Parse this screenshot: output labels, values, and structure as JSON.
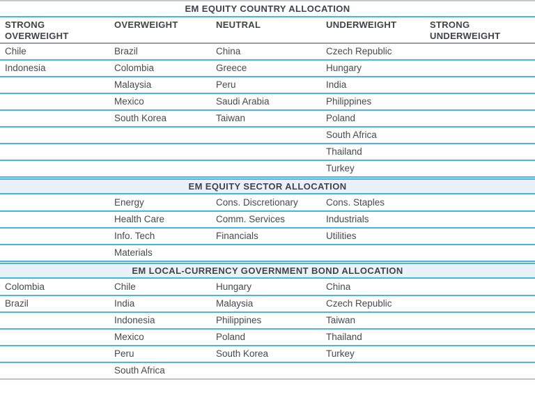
{
  "document_title": "EM allocation tables",
  "colors": {
    "accent_blue": "#47b6e3",
    "section_band_bg": "#e9f2fa",
    "title_band_bg": "#fdfefe",
    "text_dark": "#3f444a",
    "text_body": "#464a4e",
    "gray_header_rule": "#989ea3",
    "gray_top_rule": "#c6c8c9",
    "gray_bottom_rule": "#bdc2c6"
  },
  "columns": [
    "STRONG OVERWEIGHT",
    "OVERWEIGHT",
    "NEUTRAL",
    "UNDERWEIGHT",
    "STRONG UNDERWEIGHT"
  ],
  "sections": [
    {
      "title": "EM EQUITY COUNTRY ALLOCATION",
      "show_column_headers": true,
      "rows": [
        [
          "Chile",
          "Brazil",
          "China",
          "Czech Republic",
          ""
        ],
        [
          "Indonesia",
          "Colombia",
          "Greece",
          "Hungary",
          ""
        ],
        [
          "",
          "Malaysia",
          "Peru",
          "India",
          ""
        ],
        [
          "",
          "Mexico",
          "Saudi Arabia",
          "Philippines",
          ""
        ],
        [
          "",
          "South Korea",
          "Taiwan",
          "Poland",
          ""
        ],
        [
          "",
          "",
          "",
          "South Africa",
          ""
        ],
        [
          "",
          "",
          "",
          "Thailand",
          ""
        ],
        [
          "",
          "",
          "",
          "Turkey",
          ""
        ]
      ]
    },
    {
      "title": "EM EQUITY SECTOR ALLOCATION",
      "show_column_headers": false,
      "rows": [
        [
          "",
          "Energy",
          "Cons. Discretionary",
          "Cons. Staples",
          ""
        ],
        [
          "",
          "Health Care",
          "Comm. Services",
          "Industrials",
          ""
        ],
        [
          "",
          "Info. Tech",
          "Financials",
          "Utilities",
          ""
        ],
        [
          "",
          "Materials",
          "",
          "",
          ""
        ]
      ]
    },
    {
      "title": "EM LOCAL-CURRENCY GOVERNMENT BOND ALLOCATION",
      "show_column_headers": false,
      "rows": [
        [
          "Colombia",
          "Chile",
          "Hungary",
          "China",
          ""
        ],
        [
          "Brazil",
          "India",
          "Malaysia",
          "Czech Republic",
          ""
        ],
        [
          "",
          "Indonesia",
          "Philippines",
          "Taiwan",
          ""
        ],
        [
          "",
          "Mexico",
          "Poland",
          "Thailand",
          ""
        ],
        [
          "",
          "Peru",
          "South Korea",
          "Turkey",
          ""
        ],
        [
          "",
          "South Africa",
          "",
          "",
          ""
        ]
      ]
    }
  ]
}
